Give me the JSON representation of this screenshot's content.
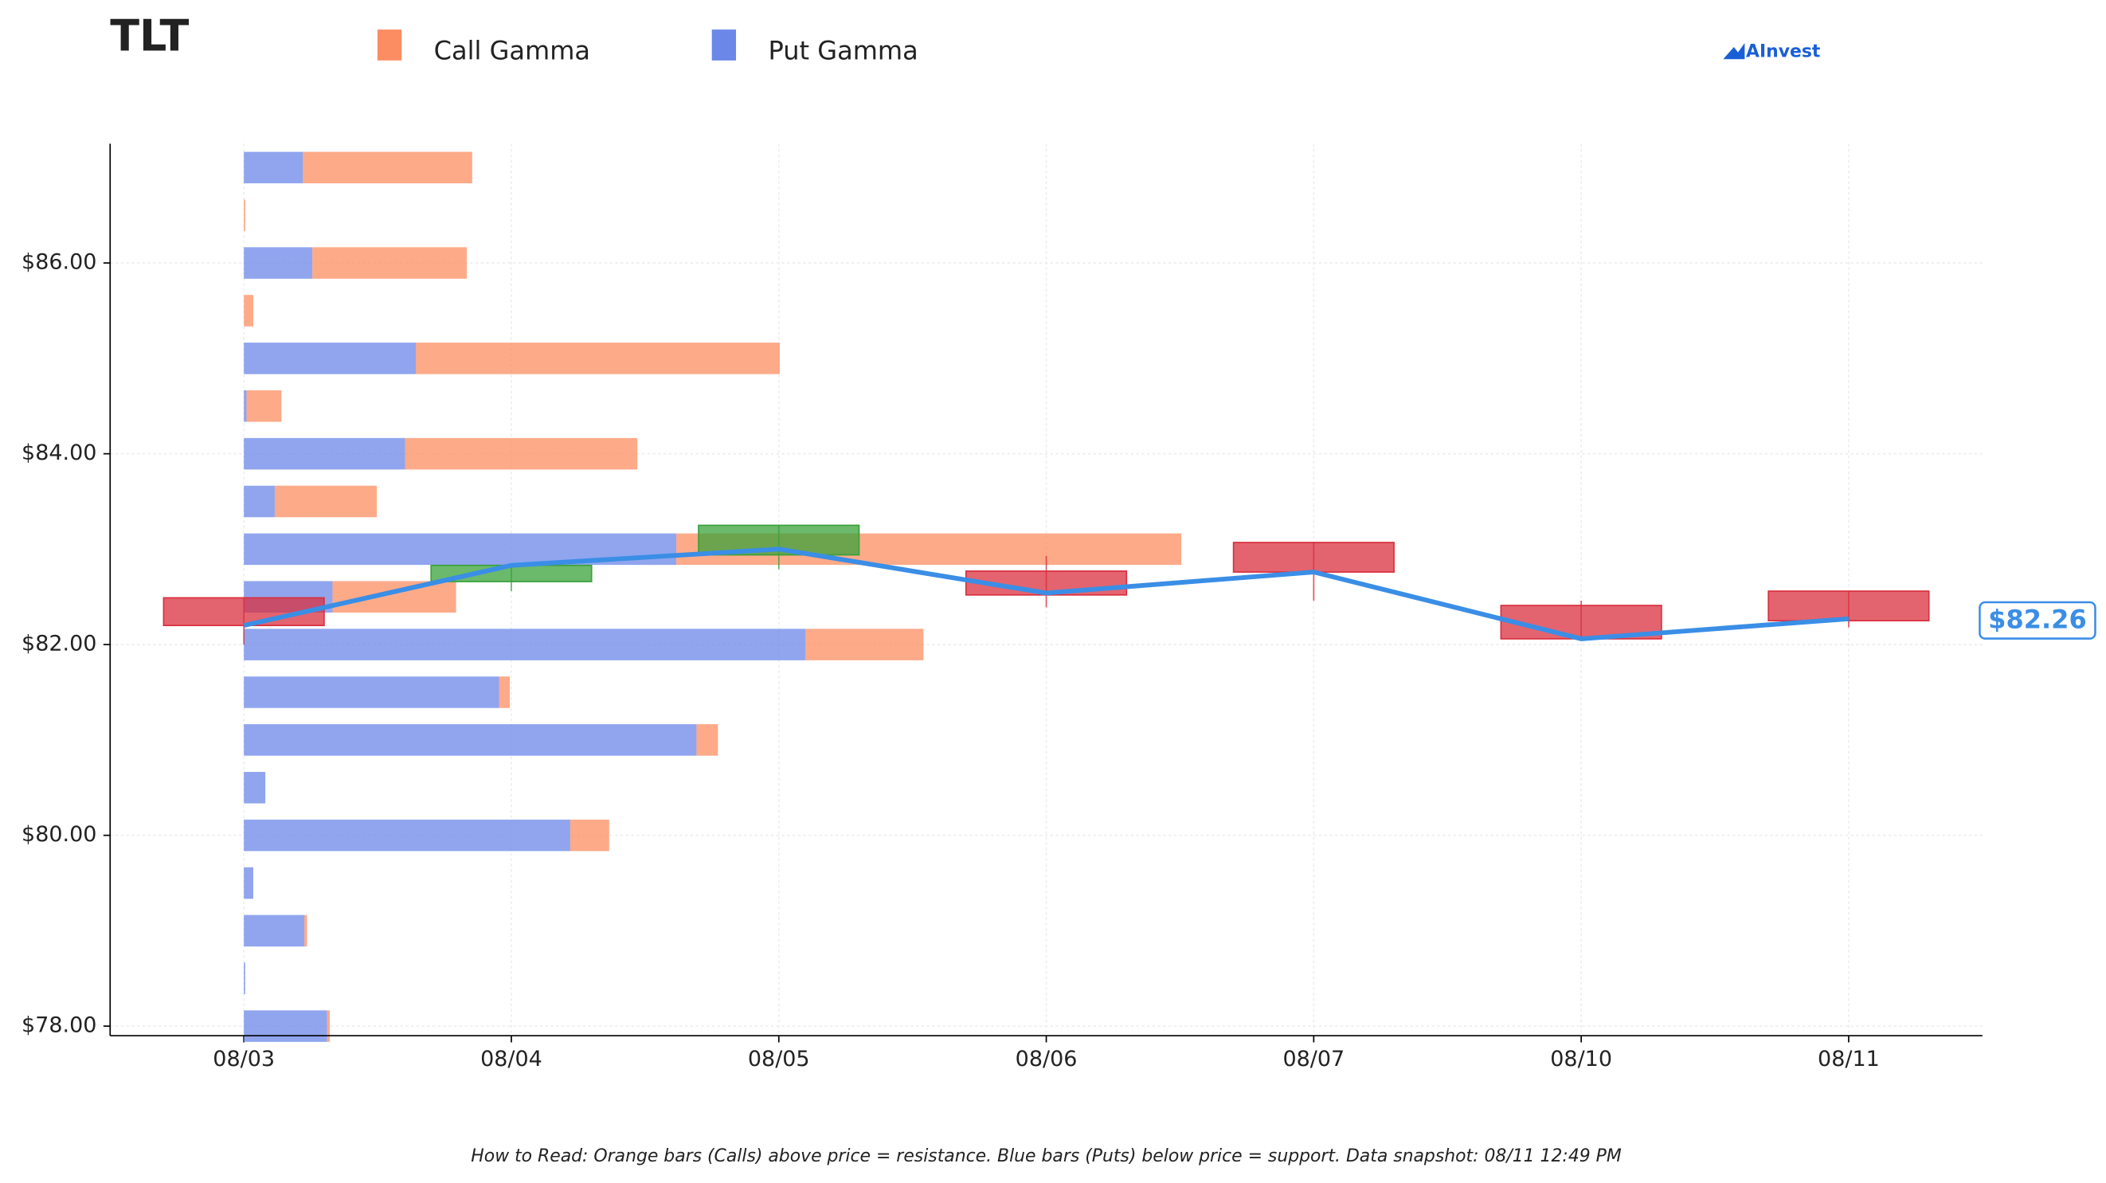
{
  "chart_data": {
    "type": "candlestick",
    "title": "TLT",
    "brand": "AInvest",
    "footnote": "How to Read: Orange bars (Calls) above price = resistance. Blue bars (Puts) below price = support. Data snapshot: 08/11 12:49 PM",
    "categories": [
      "08/03",
      "08/04",
      "08/05",
      "08/06",
      "08/07",
      "08/10",
      "08/11"
    ],
    "open": [
      82.49,
      82.66,
      82.94,
      82.77,
      83.07,
      82.41,
      82.56
    ],
    "high": [
      82.49,
      82.83,
      83.25,
      82.93,
      83.07,
      82.46,
      82.56
    ],
    "low": [
      82.0,
      82.56,
      82.79,
      82.39,
      82.46,
      82.06,
      82.18
    ],
    "close": [
      82.2,
      82.83,
      83.25,
      82.52,
      82.76,
      82.06,
      82.25
    ],
    "up_color": "#3aa13a",
    "down_color": "#d9303f",
    "line": {
      "color": "#3a8ee6",
      "values": [
        82.2,
        82.83,
        83.0,
        82.54,
        82.76,
        82.06,
        82.27
      ]
    },
    "last_price": {
      "value": 82.26,
      "label": "$82.26"
    },
    "ylim": [
      77.9,
      87.25
    ],
    "yticks": [
      {
        "value": 78,
        "label": "$78.00"
      },
      {
        "value": 80,
        "label": "$80.00"
      },
      {
        "value": 82,
        "label": "$82.00"
      },
      {
        "value": 84,
        "label": "$84.00"
      },
      {
        "value": 86,
        "label": "$86.00"
      }
    ],
    "grid": true,
    "gamma": {
      "strikes": [
        87,
        86.5,
        86,
        85.5,
        85,
        84.5,
        84,
        83.5,
        83,
        82.5,
        82,
        81.5,
        81,
        80.5,
        80,
        79.5,
        79,
        78.5,
        78
      ],
      "series": [
        {
          "name": "Put Gamma",
          "color": "#6b87e8",
          "values": [
            44,
            0,
            51,
            0,
            128,
            2,
            120,
            23,
            322,
            66,
            418,
            190,
            337,
            16,
            243,
            7,
            45,
            1,
            62
          ]
        },
        {
          "name": "Call Gamma",
          "color": "#fc8d62",
          "values": [
            126,
            1,
            115,
            7,
            271,
            26,
            173,
            76,
            376,
            92,
            88,
            8,
            16,
            0,
            29,
            0,
            2,
            0,
            2
          ]
        }
      ]
    }
  }
}
